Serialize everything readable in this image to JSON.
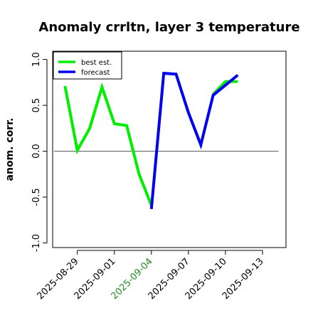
{
  "chart_data": {
    "type": "line",
    "title": "Anomaly crrltn, layer 3 temperature",
    "xlabel": "",
    "ylabel": "anom. corr.",
    "ylim": [
      -1.05,
      1.09
    ],
    "y_ticks": [
      -1.0,
      -0.5,
      0.0,
      0.5,
      1.0
    ],
    "x_tick_labels": [
      {
        "label": "2025-08-29",
        "day": 0,
        "color": "#000000"
      },
      {
        "label": "2025-09-01",
        "day": 3,
        "color": "#000000"
      },
      {
        "label": "2025-09-04",
        "day": 6,
        "color": "#228b22"
      },
      {
        "label": "2025-09-07",
        "day": 9,
        "color": "#000000"
      },
      {
        "label": "2025-09-10",
        "day": 12,
        "color": "#000000"
      },
      {
        "label": "2025-09-13",
        "day": 15,
        "color": "#000000"
      }
    ],
    "xlim_days": [
      -2.0,
      16.9
    ],
    "reference_line": 0.0,
    "legend": {
      "position": "top-left",
      "entries": [
        "best est.",
        "forecast"
      ]
    },
    "series": [
      {
        "name": "best est.",
        "color": "#00ee00",
        "x": [
          "2025-08-28",
          "2025-08-29",
          "2025-08-30",
          "2025-08-31",
          "2025-09-01",
          "2025-09-02",
          "2025-09-03",
          "2025-09-04",
          "2025-09-05",
          "2025-09-06",
          "2025-09-07",
          "2025-09-08",
          "2025-09-09",
          "2025-09-10",
          "2025-09-11"
        ],
        "values": [
          0.71,
          0.01,
          0.25,
          0.7,
          0.3,
          0.28,
          -0.25,
          -0.59,
          null,
          null,
          null,
          null,
          0.62,
          0.76,
          0.76
        ]
      },
      {
        "name": "forecast",
        "color": "#0000ee",
        "x": [
          "2025-09-04",
          "2025-09-05",
          "2025-09-06",
          "2025-09-07",
          "2025-09-08",
          "2025-09-09",
          "2025-09-10",
          "2025-09-11"
        ],
        "values": [
          -0.63,
          0.85,
          0.84,
          0.42,
          0.07,
          0.61,
          0.72,
          0.83
        ]
      }
    ]
  }
}
